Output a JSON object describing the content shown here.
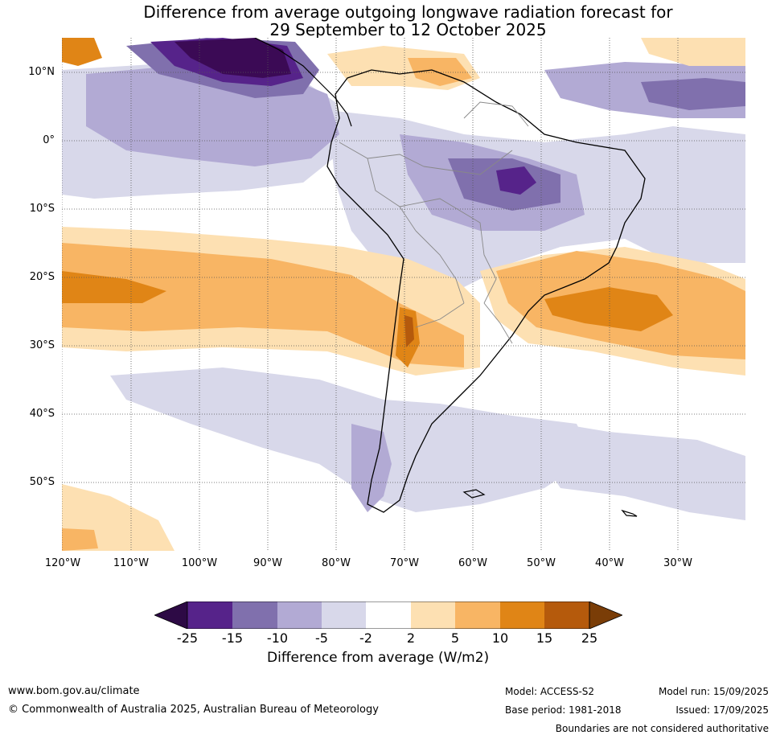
{
  "title": {
    "line1": "Difference from average outgoing longwave radiation forecast for",
    "line2": "29 September to 12 October 2025"
  },
  "map": {
    "lat_labels": [
      "10°N",
      "0°",
      "10°S",
      "20°S",
      "30°S",
      "40°S",
      "50°S"
    ],
    "lon_labels": [
      "120°W",
      "110°W",
      "100°W",
      "90°W",
      "80°W",
      "70°W",
      "60°W",
      "50°W",
      "40°W",
      "30°W"
    ],
    "colors": {
      "n25": "#3b0a55",
      "n15": "#56238a",
      "n10": "#8070ad",
      "n5": "#b2aad4",
      "n2": "#d8d8ea",
      "zero": "#ffffff",
      "p2": "#fde0b2",
      "p5": "#f8b564",
      "p10": "#e08516",
      "p15": "#b55a0c",
      "p25": "#7a3d07"
    }
  },
  "colorbar": {
    "ticks": [
      "-25",
      "-15",
      "-10",
      "-5",
      "-2",
      "2",
      "5",
      "10",
      "15",
      "25"
    ],
    "segment_colors": [
      "#56238a",
      "#8070ad",
      "#b2aad4",
      "#d8d8ea",
      "#ffffff",
      "#fde0b2",
      "#f8b564",
      "#e08516",
      "#b55a0c"
    ],
    "low_extend_color": "#2d0a45",
    "high_extend_color": "#7a3d07",
    "label": "Difference from average (W/m2)"
  },
  "footer": {
    "website": "www.bom.gov.au/climate",
    "copyright": "© Commonwealth of Australia 2025, Australian Bureau of Meteorology",
    "model": "Model: ACCESS-S2",
    "base_period": "Base period: 1981-2018",
    "model_run": "Model run: 15/09/2025",
    "issued": "Issued: 17/09/2025",
    "boundaries": "Boundaries are not considered authoritative"
  }
}
